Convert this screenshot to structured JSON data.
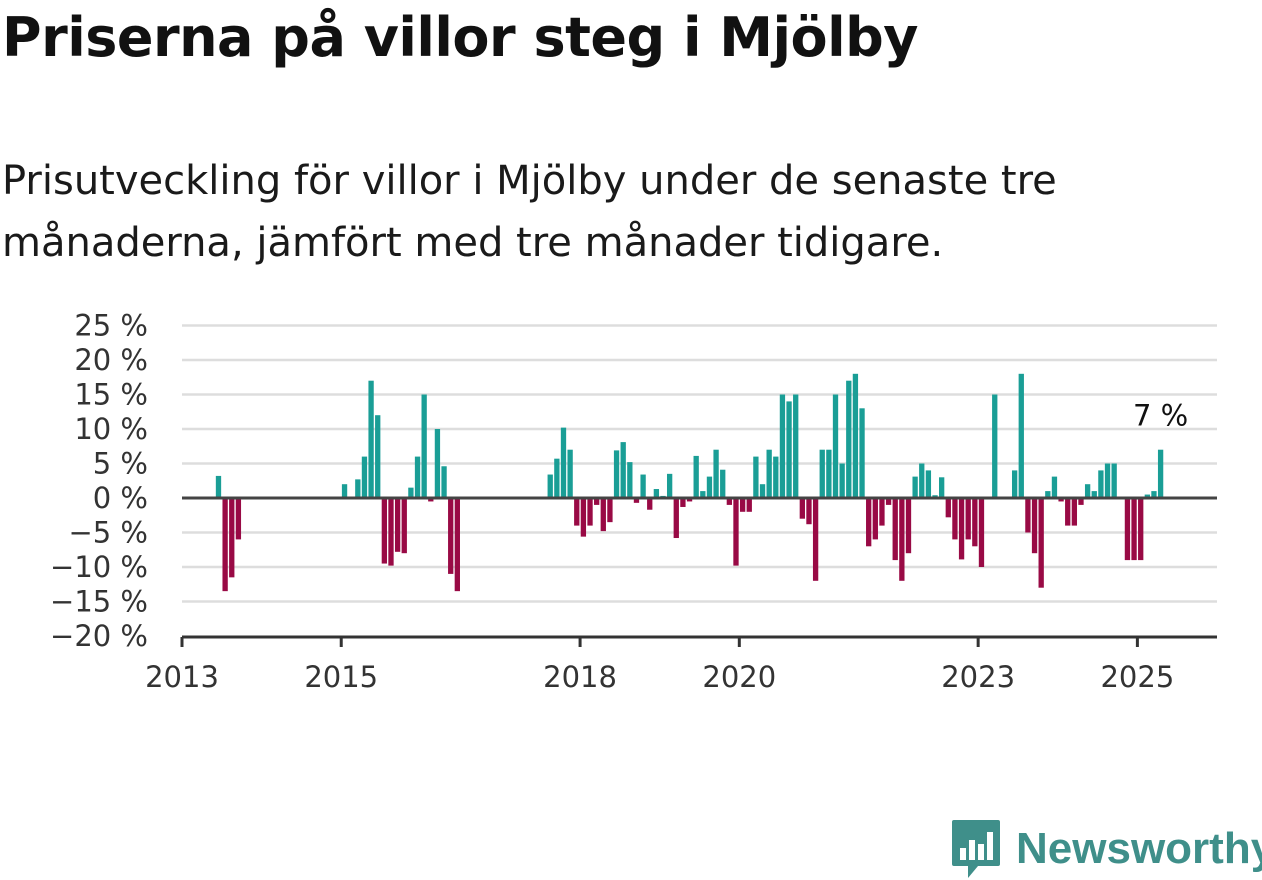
{
  "title": "Priserna på villor steg i Mjölby",
  "subtitle": "Prisutveckling för villor i Mjölby under de senaste tre månaderna, jämfört med tre månader tidigare.",
  "brand": {
    "name": "Newsworthy",
    "logo_icon": "bar-chart-speech-icon"
  },
  "colors": {
    "positive": "#1a9e96",
    "negative": "#990a45",
    "grid": "#dddddd",
    "zero_line": "#444444",
    "brand": "#3f8f8a"
  },
  "chart_data": {
    "type": "bar",
    "ylim": [
      -20,
      25
    ],
    "yticks": [
      -20,
      -15,
      -10,
      -5,
      0,
      5,
      10,
      15,
      20,
      25
    ],
    "ytick_labels": [
      "−20 %",
      "−15 %",
      "−10 %",
      "−5 %",
      "0 %",
      "5 %",
      "10 %",
      "15 %",
      "20 %",
      "25 %"
    ],
    "xlim": [
      "2013-01",
      "2026-01"
    ],
    "xtick_labels": [
      "2013",
      "2015",
      "2018",
      "2020",
      "2023",
      "2025"
    ],
    "annotation": {
      "text": "7 %",
      "x": "2025-04"
    },
    "x": [
      "2013-06",
      "2013-07",
      "2013-08",
      "2013-09",
      "2015-01",
      "2015-03",
      "2015-04",
      "2015-05",
      "2015-06",
      "2015-07",
      "2015-08",
      "2015-09",
      "2015-10",
      "2015-11",
      "2015-12",
      "2016-01",
      "2016-02",
      "2016-03",
      "2016-04",
      "2016-05",
      "2016-06",
      "2016-07",
      "2017-07",
      "2017-08",
      "2017-09",
      "2017-10",
      "2017-11",
      "2017-12",
      "2018-01",
      "2018-02",
      "2018-03",
      "2018-04",
      "2018-05",
      "2018-06",
      "2018-07",
      "2018-08",
      "2018-09",
      "2018-10",
      "2018-11",
      "2018-12",
      "2019-01",
      "2019-02",
      "2019-03",
      "2019-04",
      "2019-05",
      "2019-06",
      "2019-07",
      "2019-08",
      "2019-09",
      "2019-10",
      "2019-11",
      "2019-12",
      "2020-01",
      "2020-02",
      "2020-03",
      "2020-04",
      "2020-05",
      "2020-06",
      "2020-07",
      "2020-08",
      "2020-09",
      "2020-10",
      "2020-11",
      "2020-12",
      "2021-01",
      "2021-02",
      "2021-03",
      "2021-04",
      "2021-05",
      "2021-06",
      "2021-07",
      "2021-08",
      "2021-09",
      "2021-10",
      "2021-11",
      "2021-12",
      "2022-01",
      "2022-02",
      "2022-03",
      "2022-04",
      "2022-05",
      "2022-06",
      "2022-07",
      "2022-08",
      "2022-09",
      "2022-10",
      "2022-11",
      "2022-12",
      "2023-01",
      "2023-02",
      "2023-03",
      "2023-04",
      "2023-05",
      "2023-06",
      "2023-07",
      "2023-08",
      "2023-09",
      "2023-10",
      "2023-11",
      "2023-12",
      "2024-01",
      "2024-02",
      "2024-03",
      "2024-04",
      "2024-05",
      "2024-06",
      "2024-07",
      "2024-08",
      "2024-09",
      "2024-10",
      "2024-11",
      "2024-12",
      "2025-01",
      "2025-02",
      "2025-03",
      "2025-04"
    ],
    "values": [
      3.2,
      -13.5,
      -11.5,
      -6,
      2,
      2.7,
      6,
      17,
      12,
      -9.5,
      -9.8,
      -7.8,
      -8,
      1.5,
      6,
      15,
      -0.5,
      10,
      4.6,
      -11,
      -13.5,
      0,
      0,
      3.4,
      5.7,
      10.2,
      7,
      -4,
      -5.6,
      -4,
      -1,
      -4.8,
      -3.5,
      6.9,
      8.1,
      5.2,
      -0.7,
      3.4,
      -1.7,
      1.3,
      0.3,
      3.5,
      -5.8,
      -1.3,
      -0.5,
      6.1,
      1,
      3.1,
      7,
      4.1,
      -1,
      -9.8,
      -2,
      -2,
      6,
      2,
      7,
      6,
      15,
      14,
      15,
      -3,
      -3.8,
      -12,
      7,
      7,
      15,
      5,
      17,
      18,
      13,
      -7,
      -6,
      -4,
      -1,
      -9,
      -12,
      -8,
      3.1,
      5,
      4,
      0.4,
      3,
      -2.8,
      -6,
      -8.9,
      -6,
      -7,
      -10,
      0,
      15,
      0,
      0,
      4,
      18,
      -5,
      -8,
      -13,
      1,
      3.1,
      -0.5,
      -4,
      -4,
      -1,
      2,
      1,
      4,
      5,
      5,
      0,
      -9,
      -9,
      -9,
      0.5,
      1,
      7
    ]
  }
}
